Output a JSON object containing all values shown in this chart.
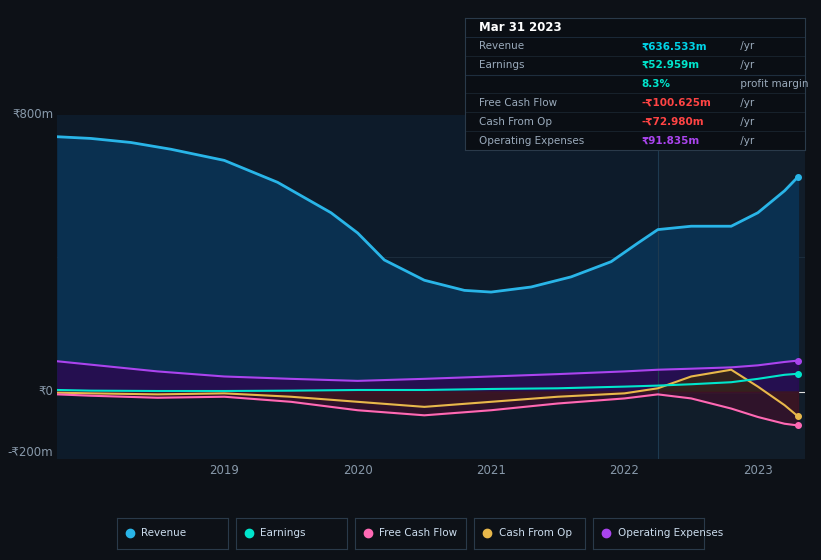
{
  "bg_color": "#0d1117",
  "plot_bg": "#0d1b2a",
  "highlight_bg": "#111d2a",
  "title": "Mar 31 2023",
  "ylim": [
    -200,
    820
  ],
  "highlight_x_start": 2022.25,
  "series": {
    "Revenue": {
      "color": "#29b5e8",
      "fill_color": "#0a3050",
      "x": [
        2017.75,
        2018.0,
        2018.3,
        2018.6,
        2019.0,
        2019.4,
        2019.8,
        2020.0,
        2020.2,
        2020.5,
        2020.8,
        2021.0,
        2021.3,
        2021.6,
        2021.9,
        2022.1,
        2022.25,
        2022.5,
        2022.8,
        2023.0,
        2023.2,
        2023.3
      ],
      "y": [
        755,
        750,
        738,
        718,
        685,
        620,
        530,
        470,
        390,
        330,
        300,
        295,
        310,
        340,
        385,
        440,
        480,
        490,
        490,
        530,
        595,
        636
      ]
    },
    "Earnings": {
      "color": "#00e5cc",
      "x": [
        2017.75,
        2018.0,
        2018.5,
        2019.0,
        2019.5,
        2020.0,
        2020.5,
        2021.0,
        2021.5,
        2022.0,
        2022.25,
        2022.5,
        2022.8,
        2023.0,
        2023.2,
        2023.3
      ],
      "y": [
        5,
        3,
        2,
        2,
        3,
        5,
        5,
        8,
        10,
        15,
        18,
        22,
        28,
        38,
        50,
        53
      ]
    },
    "Free Cash Flow": {
      "color": "#ff69b4",
      "fill_color": "#3d0f2a",
      "x": [
        2017.75,
        2018.0,
        2018.5,
        2019.0,
        2019.5,
        2020.0,
        2020.5,
        2021.0,
        2021.5,
        2022.0,
        2022.25,
        2022.5,
        2022.8,
        2023.0,
        2023.2,
        2023.3
      ],
      "y": [
        -8,
        -12,
        -18,
        -15,
        -30,
        -55,
        -70,
        -55,
        -35,
        -20,
        -8,
        -20,
        -50,
        -75,
        -95,
        -100
      ]
    },
    "Cash From Op": {
      "color": "#e8b84b",
      "fill_color": "#3a2a0a",
      "x": [
        2017.75,
        2018.0,
        2018.5,
        2019.0,
        2019.5,
        2020.0,
        2020.5,
        2021.0,
        2021.5,
        2022.0,
        2022.25,
        2022.5,
        2022.8,
        2023.0,
        2023.2,
        2023.3
      ],
      "y": [
        -3,
        -5,
        -8,
        -5,
        -15,
        -30,
        -45,
        -30,
        -15,
        -5,
        10,
        45,
        65,
        15,
        -40,
        -73
      ]
    },
    "Operating Expenses": {
      "color": "#aa44ee",
      "fill_color": "#2a0a50",
      "x": [
        2017.75,
        2018.0,
        2018.5,
        2019.0,
        2019.5,
        2020.0,
        2020.5,
        2021.0,
        2021.5,
        2022.0,
        2022.25,
        2022.5,
        2022.8,
        2023.0,
        2023.2,
        2023.3
      ],
      "y": [
        90,
        80,
        60,
        45,
        38,
        32,
        38,
        45,
        52,
        60,
        65,
        68,
        72,
        78,
        88,
        92
      ]
    }
  },
  "legend": [
    {
      "label": "Revenue",
      "color": "#29b5e8"
    },
    {
      "label": "Earnings",
      "color": "#00e5cc"
    },
    {
      "label": "Free Cash Flow",
      "color": "#ff69b4"
    },
    {
      "label": "Cash From Op",
      "color": "#e8b84b"
    },
    {
      "label": "Operating Expenses",
      "color": "#aa44ee"
    }
  ],
  "xticks": [
    2019,
    2020,
    2021,
    2022,
    2023
  ],
  "xlim": [
    2017.75,
    2023.35
  ],
  "info_rows": [
    {
      "label": "Mar 31 2023",
      "value": null,
      "suffix": null,
      "vcolor": null,
      "is_title": true
    },
    {
      "label": "Revenue",
      "value": "₹636.533m",
      "suffix": " /yr",
      "vcolor": "#00d4e8",
      "is_title": false
    },
    {
      "label": "Earnings",
      "value": "₹52.959m",
      "suffix": " /yr",
      "vcolor": "#00e5cc",
      "is_title": false
    },
    {
      "label": "",
      "value": "8.3%",
      "suffix": " profit margin",
      "vcolor": "#00e5cc",
      "is_title": false,
      "suffix_bold": true
    },
    {
      "label": "Free Cash Flow",
      "value": "-₹100.625m",
      "suffix": " /yr",
      "vcolor": "#ff4444",
      "is_title": false
    },
    {
      "label": "Cash From Op",
      "value": "-₹72.980m",
      "suffix": " /yr",
      "vcolor": "#ff4444",
      "is_title": false
    },
    {
      "label": "Operating Expenses",
      "value": "₹91.835m",
      "suffix": " /yr",
      "vcolor": "#aa44ee",
      "is_title": false
    }
  ]
}
